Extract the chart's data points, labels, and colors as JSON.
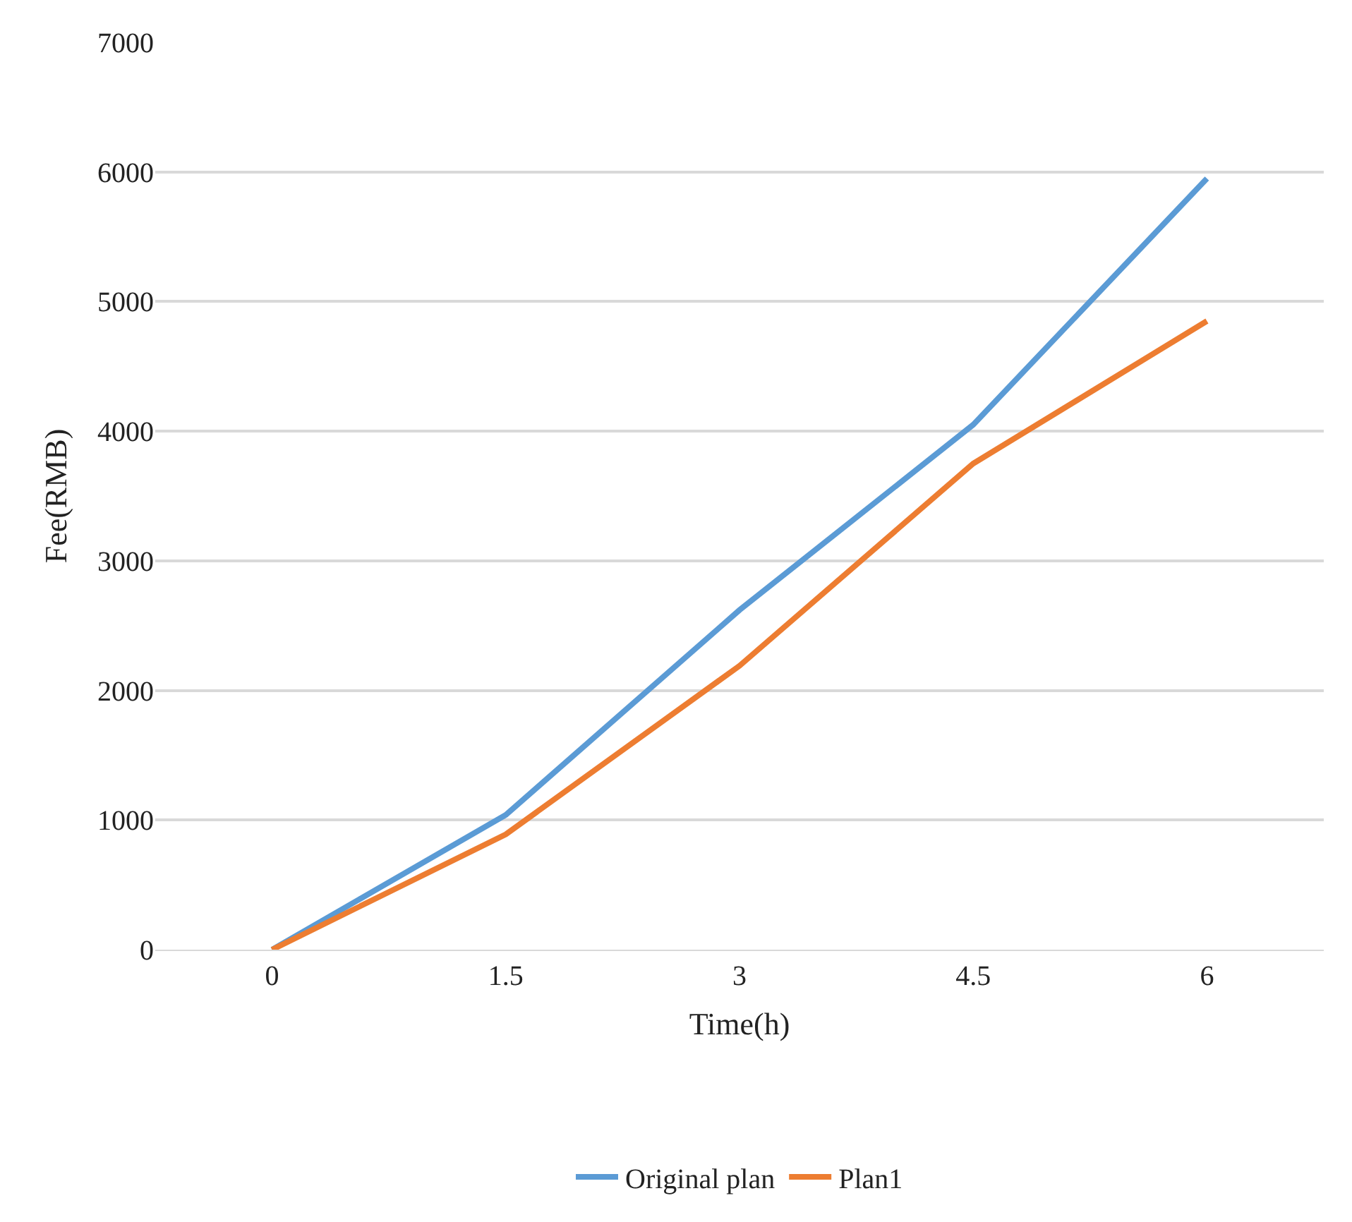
{
  "chart_data": {
    "type": "line",
    "xlabel": "Time(h)",
    "ylabel": "Fee(RMB)",
    "categories": [
      "0",
      "1.5",
      "3",
      "4.5",
      "6"
    ],
    "series": [
      {
        "name": "Original plan",
        "color": "#5b9bd5",
        "values": [
          0,
          1040,
          2620,
          4050,
          5950
        ]
      },
      {
        "name": "Plan1",
        "color": "#ed7d31",
        "values": [
          0,
          890,
          2190,
          3750,
          4850
        ]
      }
    ],
    "ylim": [
      0,
      7000
    ],
    "yticks": [
      0,
      1000,
      2000,
      3000,
      4000,
      5000,
      6000,
      7000
    ],
    "grid": "y",
    "legend": "bottom",
    "marker": "none",
    "line_style": "solid"
  }
}
